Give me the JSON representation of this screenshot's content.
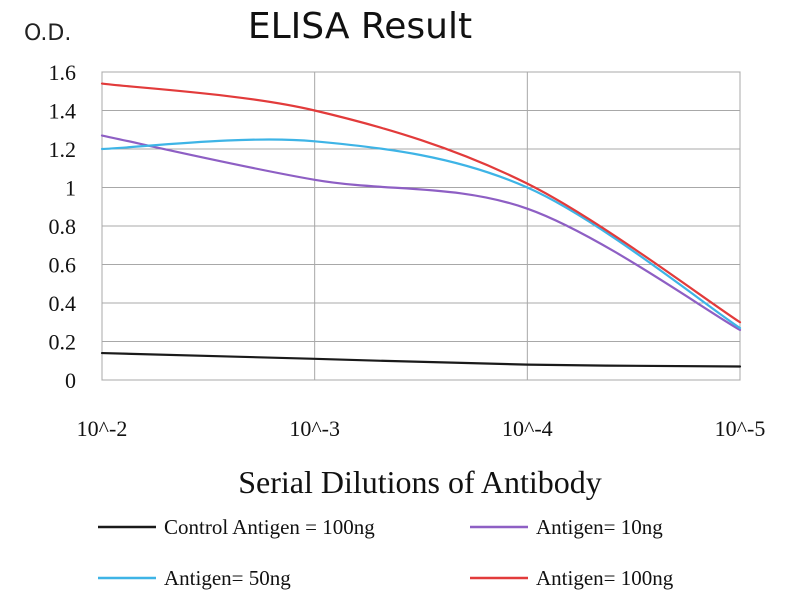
{
  "chart_data": {
    "type": "line",
    "title": "ELISA Result",
    "ylabel": "O.D.",
    "xlabel": "Serial Dilutions of Antibody",
    "x": [
      "10^-2",
      "10^-3",
      "10^-4",
      "10^-5"
    ],
    "ylim": [
      0,
      1.6
    ],
    "yticks": [
      0,
      0.2,
      0.4,
      0.6,
      0.8,
      1,
      1.2,
      1.4,
      1.6
    ],
    "ytick_labels": [
      "0",
      "0.2",
      "0.4",
      "0.6",
      "0.8",
      "1",
      "1.2",
      "1.4",
      "1.6"
    ],
    "grid": true,
    "legend_position": "bottom",
    "series": [
      {
        "name": "Control Antigen = 100ng",
        "color": "#1a1a1a",
        "values": [
          0.14,
          0.11,
          0.08,
          0.07
        ]
      },
      {
        "name": "Antigen= 10ng",
        "color": "#8e5fc4",
        "values": [
          1.27,
          1.04,
          0.89,
          0.26
        ]
      },
      {
        "name": "Antigen= 50ng",
        "color": "#3eb4e6",
        "values": [
          1.2,
          1.24,
          1.0,
          0.27
        ]
      },
      {
        "name": "Antigen= 100ng",
        "color": "#e23b3b",
        "values": [
          1.54,
          1.4,
          1.02,
          0.3
        ]
      }
    ]
  }
}
